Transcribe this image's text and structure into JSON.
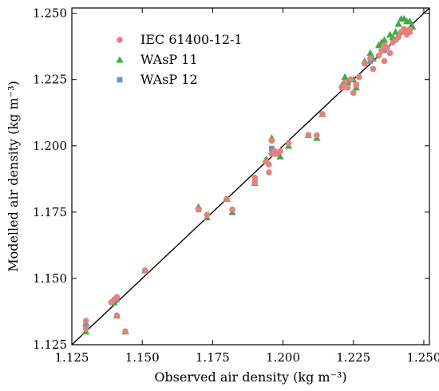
{
  "colors": {
    "IEC 61400-12-1": "#e8807a",
    "WAsP 11": "#3aaf43",
    "WAsP 12": "#6f91bf"
  },
  "chart_data": {
    "type": "scatter",
    "xlabel": "Observed air density (kg m⁻³)",
    "ylabel": "Modelled air density (kg m⁻³)",
    "xlim": [
      1.125,
      1.252
    ],
    "ylim": [
      1.125,
      1.252
    ],
    "xticks": [
      "1.125",
      "1.150",
      "1.175",
      "1.200",
      "1.225",
      "1.250"
    ],
    "yticks": [
      "1.125",
      "1.150",
      "1.175",
      "1.200",
      "1.225",
      "1.250"
    ],
    "reference_line": "1:1",
    "grid": false,
    "legend_position": "top-left",
    "series": [
      {
        "name": "IEC 61400-12-1",
        "marker": "circle",
        "x": [
          1.13,
          1.13,
          1.139,
          1.14,
          1.141,
          1.141,
          1.144,
          1.151,
          1.17,
          1.173,
          1.18,
          1.182,
          1.19,
          1.19,
          1.194,
          1.195,
          1.195,
          1.196,
          1.196,
          1.197,
          1.198,
          1.199,
          1.202,
          1.209,
          1.212,
          1.214,
          1.221,
          1.222,
          1.223,
          1.224,
          1.225,
          1.226,
          1.227,
          1.229,
          1.231,
          1.232,
          1.234,
          1.235,
          1.236,
          1.236,
          1.237,
          1.238,
          1.239,
          1.24,
          1.241,
          1.242,
          1.243,
          1.244,
          1.245,
          1.245
        ],
        "y": [
          1.134,
          1.131,
          1.141,
          1.142,
          1.136,
          1.143,
          1.13,
          1.153,
          1.176,
          1.174,
          1.18,
          1.176,
          1.188,
          1.186,
          1.194,
          1.193,
          1.19,
          1.197,
          1.202,
          1.198,
          1.197,
          1.198,
          1.201,
          1.204,
          1.204,
          1.212,
          1.222,
          1.224,
          1.222,
          1.225,
          1.22,
          1.223,
          1.226,
          1.231,
          1.233,
          1.229,
          1.234,
          1.236,
          1.232,
          1.238,
          1.237,
          1.235,
          1.239,
          1.24,
          1.241,
          1.243,
          1.244,
          1.242,
          1.243,
          1.244
        ]
      },
      {
        "name": "WAsP 11",
        "marker": "triangle",
        "x": [
          1.13,
          1.13,
          1.14,
          1.141,
          1.144,
          1.151,
          1.17,
          1.173,
          1.18,
          1.182,
          1.19,
          1.194,
          1.196,
          1.196,
          1.198,
          1.199,
          1.202,
          1.209,
          1.212,
          1.214,
          1.221,
          1.222,
          1.223,
          1.225,
          1.226,
          1.229,
          1.231,
          1.232,
          1.234,
          1.235,
          1.236,
          1.238,
          1.239,
          1.24,
          1.241,
          1.242,
          1.243,
          1.244,
          1.245,
          1.246
        ],
        "y": [
          1.13,
          1.133,
          1.141,
          1.136,
          1.13,
          1.153,
          1.177,
          1.173,
          1.18,
          1.175,
          1.186,
          1.195,
          1.198,
          1.203,
          1.197,
          1.196,
          1.2,
          1.204,
          1.203,
          1.212,
          1.223,
          1.226,
          1.224,
          1.225,
          1.222,
          1.232,
          1.235,
          1.233,
          1.238,
          1.239,
          1.24,
          1.242,
          1.241,
          1.243,
          1.246,
          1.248,
          1.248,
          1.247,
          1.247,
          1.245
        ]
      },
      {
        "name": "WAsP 12",
        "marker": "square",
        "x": [
          1.13,
          1.141,
          1.17,
          1.19,
          1.196,
          1.209,
          1.221,
          1.226,
          1.231,
          1.236,
          1.24,
          1.243,
          1.245
        ],
        "y": [
          1.132,
          1.142,
          1.176,
          1.187,
          1.199,
          1.204,
          1.222,
          1.223,
          1.232,
          1.236,
          1.24,
          1.243,
          1.243
        ]
      }
    ]
  }
}
